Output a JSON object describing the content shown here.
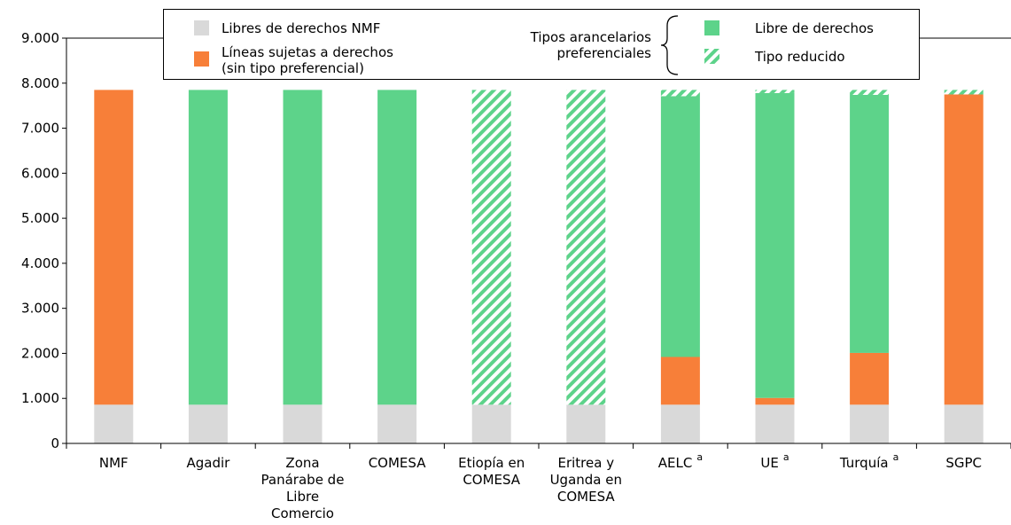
{
  "chart_data": {
    "type": "bar",
    "stacked": true,
    "ylim": [
      0,
      9000
    ],
    "yticks": [
      "0",
      "1.000",
      "2.000",
      "3.000",
      "4.000",
      "5.000",
      "6.000",
      "7.000",
      "8.000",
      "9.000"
    ],
    "categories": [
      {
        "label": "NMF",
        "sup": ""
      },
      {
        "label": "Agadir",
        "sup": ""
      },
      {
        "label": "Zona\nPanárabe de\nLibre\nComercio",
        "sup": ""
      },
      {
        "label": "COMESA",
        "sup": ""
      },
      {
        "label": "Etiopía en\nCOMESA",
        "sup": ""
      },
      {
        "label": "Eritrea y\nUganda en\nCOMESA",
        "sup": ""
      },
      {
        "label": "AELC",
        "sup": "a"
      },
      {
        "label": "UE",
        "sup": "a"
      },
      {
        "label": "Turquía",
        "sup": "a"
      },
      {
        "label": "SGPC",
        "sup": ""
      }
    ],
    "series": [
      {
        "key": "mfn_free",
        "name": "Libres de derechos NMF",
        "color": "#d9d9d9",
        "pattern": "solid",
        "values": [
          860,
          860,
          860,
          860,
          860,
          860,
          860,
          860,
          860,
          860
        ]
      },
      {
        "key": "dutiable",
        "name": "Líneas sujetas a derechos\n(sin tipo preferencial)",
        "color": "#f77f39",
        "pattern": "solid",
        "values": [
          6990,
          0,
          0,
          0,
          0,
          0,
          1060,
          150,
          1150,
          6890
        ]
      },
      {
        "key": "pref_free",
        "name": "Libre de derechos",
        "color": "#5dd38a",
        "pattern": "solid",
        "values": [
          0,
          6990,
          6990,
          6990,
          0,
          0,
          5790,
          6770,
          5730,
          0
        ]
      },
      {
        "key": "pref_reduced",
        "name": "Tipo reducido",
        "color": "#5dd38a",
        "pattern": "hatch",
        "values": [
          0,
          0,
          0,
          0,
          6990,
          6990,
          140,
          70,
          110,
          100
        ]
      }
    ],
    "legend": {
      "placement": "top",
      "group_label": "Tipos arancelarios\npreferenciales"
    }
  }
}
